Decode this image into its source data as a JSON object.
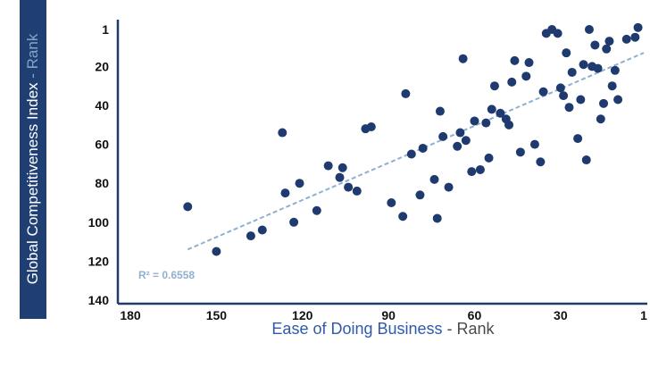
{
  "chart_data": {
    "type": "scatter",
    "title": "",
    "xlabel": "Ease of Doing Business",
    "xlabel_qualifier": "Rank",
    "ylabel": "Global Competitiveness Index",
    "ylabel_qualifier": "Rank",
    "xlim": [
      180,
      1
    ],
    "ylim": [
      1,
      140
    ],
    "x_ticks": [
      180,
      150,
      120,
      90,
      60,
      30,
      1
    ],
    "y_ticks": [
      1,
      20,
      40,
      60,
      80,
      100,
      120,
      140
    ],
    "x_reversed": true,
    "y_reversed": true,
    "grid": false,
    "point_color": "#1f3a6e",
    "trendline": {
      "style": "dashed",
      "color": "#8fb0cf",
      "from": {
        "x": 160,
        "y": 114
      },
      "to": {
        "x": 1,
        "y": 13
      },
      "label": "R² = 0.6558"
    },
    "points": [
      {
        "x": 160,
        "y": 92
      },
      {
        "x": 150,
        "y": 115
      },
      {
        "x": 138,
        "y": 107
      },
      {
        "x": 134,
        "y": 104
      },
      {
        "x": 127,
        "y": 54
      },
      {
        "x": 126,
        "y": 85
      },
      {
        "x": 123,
        "y": 100
      },
      {
        "x": 121,
        "y": 80
      },
      {
        "x": 115,
        "y": 94
      },
      {
        "x": 111,
        "y": 71
      },
      {
        "x": 107,
        "y": 77
      },
      {
        "x": 106,
        "y": 72
      },
      {
        "x": 104,
        "y": 82
      },
      {
        "x": 101,
        "y": 84
      },
      {
        "x": 98,
        "y": 52
      },
      {
        "x": 96,
        "y": 51
      },
      {
        "x": 89,
        "y": 90
      },
      {
        "x": 85,
        "y": 97
      },
      {
        "x": 84,
        "y": 34
      },
      {
        "x": 82,
        "y": 65
      },
      {
        "x": 79,
        "y": 86
      },
      {
        "x": 78,
        "y": 62
      },
      {
        "x": 74,
        "y": 78
      },
      {
        "x": 73,
        "y": 98
      },
      {
        "x": 72,
        "y": 43
      },
      {
        "x": 71,
        "y": 56
      },
      {
        "x": 69,
        "y": 82
      },
      {
        "x": 66,
        "y": 61
      },
      {
        "x": 65,
        "y": 54
      },
      {
        "x": 64,
        "y": 16
      },
      {
        "x": 63,
        "y": 58
      },
      {
        "x": 61,
        "y": 74
      },
      {
        "x": 60,
        "y": 48
      },
      {
        "x": 58,
        "y": 73
      },
      {
        "x": 56,
        "y": 49
      },
      {
        "x": 55,
        "y": 67
      },
      {
        "x": 54,
        "y": 42
      },
      {
        "x": 53,
        "y": 30
      },
      {
        "x": 51,
        "y": 44
      },
      {
        "x": 49,
        "y": 47
      },
      {
        "x": 48,
        "y": 50
      },
      {
        "x": 47,
        "y": 28
      },
      {
        "x": 46,
        "y": 17
      },
      {
        "x": 44,
        "y": 64
      },
      {
        "x": 42,
        "y": 25
      },
      {
        "x": 41,
        "y": 18
      },
      {
        "x": 39,
        "y": 60
      },
      {
        "x": 37,
        "y": 69
      },
      {
        "x": 36,
        "y": 33
      },
      {
        "x": 35,
        "y": 3
      },
      {
        "x": 33,
        "y": 1
      },
      {
        "x": 31,
        "y": 3
      },
      {
        "x": 30,
        "y": 31
      },
      {
        "x": 29,
        "y": 35
      },
      {
        "x": 28,
        "y": 13
      },
      {
        "x": 27,
        "y": 41
      },
      {
        "x": 26,
        "y": 23
      },
      {
        "x": 24,
        "y": 57
      },
      {
        "x": 23,
        "y": 37
      },
      {
        "x": 22,
        "y": 19
      },
      {
        "x": 21,
        "y": 68
      },
      {
        "x": 20,
        "y": 1
      },
      {
        "x": 19,
        "y": 20
      },
      {
        "x": 18,
        "y": 9
      },
      {
        "x": 17,
        "y": 21
      },
      {
        "x": 16,
        "y": 47
      },
      {
        "x": 15,
        "y": 39
      },
      {
        "x": 14,
        "y": 11
      },
      {
        "x": 13,
        "y": 7
      },
      {
        "x": 12,
        "y": 30
      },
      {
        "x": 11,
        "y": 22
      },
      {
        "x": 10,
        "y": 37
      },
      {
        "x": 7,
        "y": 6
      },
      {
        "x": 4,
        "y": 5
      },
      {
        "x": 3,
        "y": 0
      }
    ]
  }
}
